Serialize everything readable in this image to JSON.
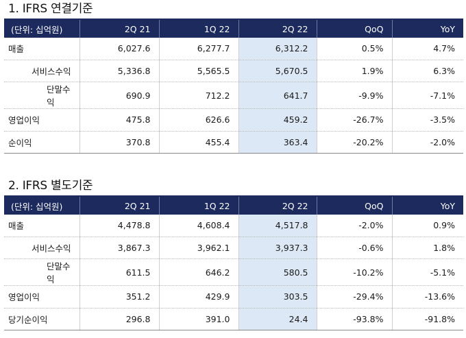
{
  "table1": {
    "title": "1. IFRS 연결기준",
    "headers": [
      "(단위: 십억원)",
      "2Q 21",
      "1Q 22",
      "2Q 22",
      "QoQ",
      "YoY"
    ],
    "rows": [
      [
        "매출",
        "6,027.6",
        "6,277.7",
        "6,312.2",
        "0.5%",
        "4.7%"
      ],
      [
        "서비스수익",
        "5,336.8",
        "5,565.5",
        "5,670.5",
        "1.9%",
        "6.3%"
      ],
      [
        "단말수익",
        "690.9",
        "712.2",
        "641.7",
        "-9.9%",
        "-7.1%"
      ],
      [
        "영업이익",
        "475.8",
        "626.6",
        "459.2",
        "-26.7%",
        "-3.5%"
      ],
      [
        "순이익",
        "370.8",
        "455.4",
        "363.4",
        "-20.2%",
        "-2.0%"
      ]
    ]
  },
  "table2": {
    "title": "2. IFRS 별도기준",
    "headers": [
      "(단위: 십억원)",
      "2Q 21",
      "1Q 22",
      "2Q 22",
      "QoQ",
      "YoY"
    ],
    "rows": [
      [
        "매출",
        "4,478.8",
        "4,608.4",
        "4,517.8",
        "-2.0%",
        "0.9%"
      ],
      [
        "서비스수익",
        "3,867.3",
        "3,962.1",
        "3,937.3",
        "-0.6%",
        "1.8%"
      ],
      [
        "단말수익",
        "611.5",
        "646.2",
        "580.5",
        "-10.2%",
        "-5.1%"
      ],
      [
        "영업이익",
        "351.2",
        "429.9",
        "303.5",
        "-29.4%",
        "-13.6%"
      ],
      [
        "당기순이익",
        "296.8",
        "391.0",
        "24.4",
        "-93.8%",
        "-91.8%"
      ]
    ]
  }
}
